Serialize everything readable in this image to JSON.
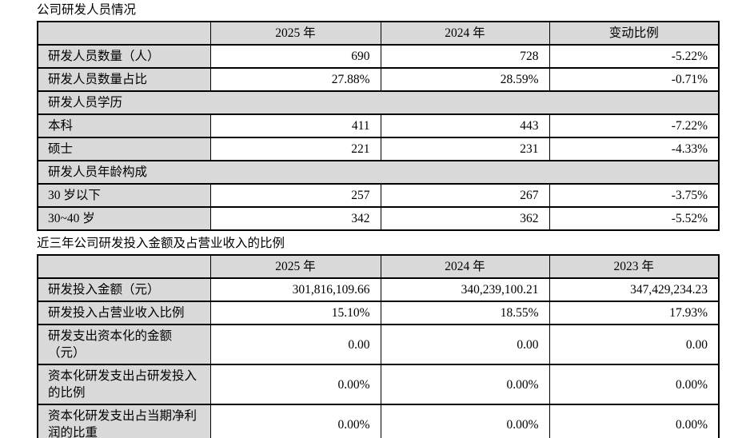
{
  "colors": {
    "header_bg": "#d9d9d9",
    "label_bg": "#d9d9d9",
    "section_bg": "#d9d9d9",
    "border": "#000000",
    "text": "#000000",
    "page_bg": "#ffffff"
  },
  "table1": {
    "title": "公司研发人员情况",
    "columns": [
      "",
      "2025 年",
      "2024 年",
      "变动比例"
    ],
    "rows": [
      {
        "type": "data",
        "label": "研发人员数量（人）",
        "values": [
          "690",
          "728",
          "-5.22%"
        ]
      },
      {
        "type": "data",
        "label": "研发人员数量占比",
        "values": [
          "27.88%",
          "28.59%",
          "-0.71%"
        ]
      },
      {
        "type": "section",
        "label": "研发人员学历"
      },
      {
        "type": "data",
        "label": "本科",
        "values": [
          "411",
          "443",
          "-7.22%"
        ]
      },
      {
        "type": "data",
        "label": "硕士",
        "values": [
          "221",
          "231",
          "-4.33%"
        ]
      },
      {
        "type": "section",
        "label": "研发人员年龄构成"
      },
      {
        "type": "data",
        "label": "30 岁以下",
        "values": [
          "257",
          "267",
          "-3.75%"
        ]
      },
      {
        "type": "data",
        "label": "30~40 岁",
        "values": [
          "342",
          "362",
          "-5.52%"
        ]
      }
    ]
  },
  "table2": {
    "title": "近三年公司研发投入金额及占营业收入的比例",
    "columns": [
      "",
      "2025 年",
      "2024 年",
      "2023 年"
    ],
    "rows": [
      {
        "type": "data",
        "label": "研发投入金额（元）",
        "values": [
          "301,816,109.66",
          "340,239,100.21",
          "347,429,234.23"
        ]
      },
      {
        "type": "data",
        "label": "研发投入占营业收入比例",
        "values": [
          "15.10%",
          "18.55%",
          "17.93%"
        ]
      },
      {
        "type": "data",
        "label": "研发支出资本化的金额（元）",
        "values": [
          "0.00",
          "0.00",
          "0.00"
        ]
      },
      {
        "type": "data",
        "label": "资本化研发支出占研发投入的比例",
        "values": [
          "0.00%",
          "0.00%",
          "0.00%"
        ]
      },
      {
        "type": "data",
        "label": "资本化研发支出占当期净利润的比重",
        "values": [
          "0.00%",
          "0.00%",
          "0.00%"
        ]
      }
    ]
  }
}
